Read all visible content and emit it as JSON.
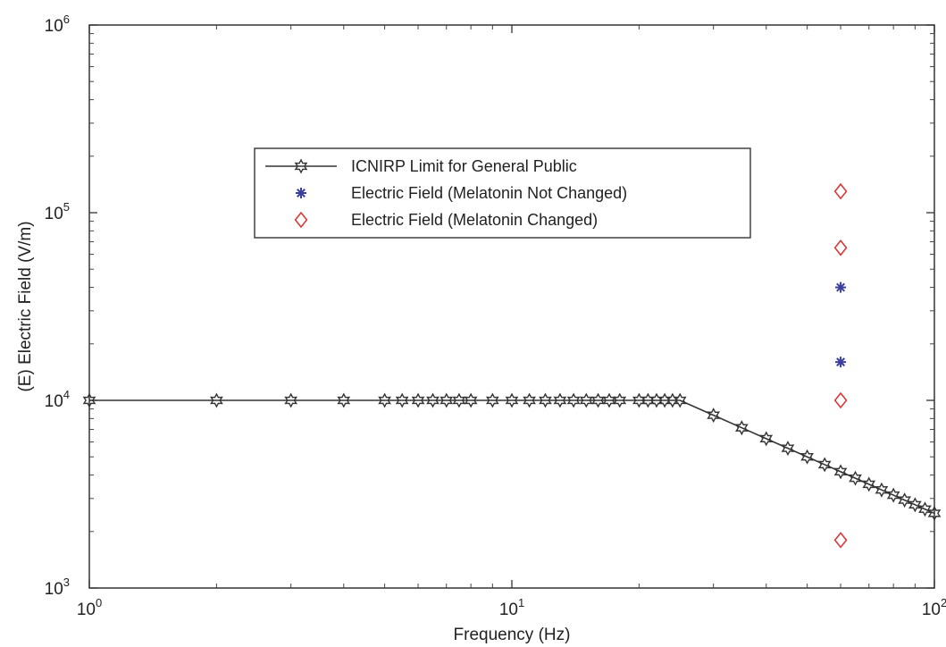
{
  "chart_data": {
    "type": "scatter",
    "title": "",
    "xlabel": "Frequency (Hz)",
    "ylabel": "(E) Electric Field (V/m)",
    "x_scale": "log",
    "y_scale": "log",
    "xlim": [
      1,
      100
    ],
    "ylim": [
      1000,
      1000000
    ],
    "x_ticks": [
      {
        "value": 1,
        "base": "10",
        "exp": "0"
      },
      {
        "value": 10,
        "base": "10",
        "exp": "1"
      },
      {
        "value": 100,
        "base": "10",
        "exp": "2"
      }
    ],
    "y_ticks": [
      {
        "value": 1000,
        "base": "10",
        "exp": "3"
      },
      {
        "value": 10000,
        "base": "10",
        "exp": "4"
      },
      {
        "value": 100000,
        "base": "10",
        "exp": "5"
      },
      {
        "value": 1000000,
        "base": "10",
        "exp": "6"
      }
    ],
    "grid": false,
    "legend_position": "upper-center",
    "series": [
      {
        "name": "ICNIRP Limit for General Public",
        "kind": "line",
        "marker": "hexagram",
        "color": "#333333",
        "x": [
          1,
          2,
          3,
          4,
          5,
          5.5,
          6,
          6.5,
          7,
          7.5,
          8,
          9,
          10,
          11,
          12,
          13,
          14,
          15,
          16,
          17,
          18,
          20,
          21,
          22,
          23,
          24,
          25,
          30,
          35,
          40,
          45,
          50,
          55,
          60,
          65,
          70,
          75,
          80,
          85,
          90,
          95,
          100
        ],
        "y": [
          10000,
          10000,
          10000,
          10000,
          10000,
          10000,
          10000,
          10000,
          10000,
          10000,
          10000,
          10000,
          10000,
          10000,
          10000,
          10000,
          10000,
          10000,
          10000,
          10000,
          10000,
          10000,
          10000,
          10000,
          10000,
          10000,
          10000,
          8333,
          7143,
          6250,
          5556,
          5000,
          4545,
          4167,
          3846,
          3571,
          3333,
          3125,
          2941,
          2778,
          2632,
          2500
        ]
      },
      {
        "name": "Electric Field (Melatonin Not Changed)",
        "kind": "scatter",
        "marker": "asterisk",
        "color": "#3a3f9e",
        "x": [
          60,
          60
        ],
        "y": [
          40000,
          16000
        ]
      },
      {
        "name": "Electric Field (Melatonin Changed)",
        "kind": "scatter",
        "marker": "diamond",
        "color": "#d63a3a",
        "x": [
          60,
          60,
          60,
          60
        ],
        "y": [
          130000,
          65000,
          10000,
          1800
        ]
      }
    ]
  }
}
